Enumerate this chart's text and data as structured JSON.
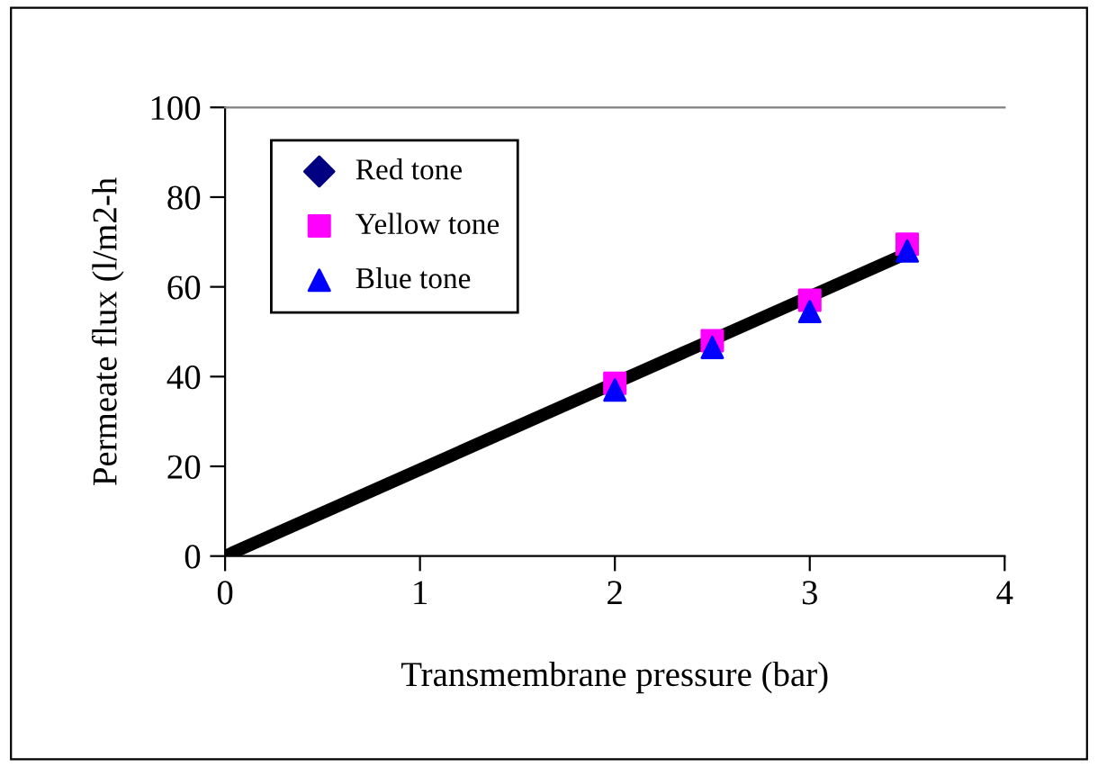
{
  "chart_data": {
    "type": "scatter",
    "xlabel": "Transmembrane pressure (bar)",
    "ylabel": "Permeate flux (l/m2-h",
    "x": [
      2,
      2.5,
      3,
      3.5
    ],
    "series": [
      {
        "name": "Red tone",
        "color": "#000080",
        "marker": "diamond",
        "values": [
          null,
          null,
          null,
          null
        ]
      },
      {
        "name": "Yellow tone",
        "color": "#ff00ff",
        "marker": "square",
        "values": [
          38.5,
          48,
          57,
          69.5
        ]
      },
      {
        "name": "Blue tone",
        "color": "#0000ff",
        "marker": "triangle",
        "values": [
          37,
          46.5,
          54.5,
          68
        ]
      },
      {
        "type": "line",
        "color": "#000000",
        "x": [
          0,
          3.5
        ],
        "values": [
          0,
          67.5
        ],
        "marker": "none",
        "line_style": "solid"
      }
    ],
    "xlim": [
      0,
      4
    ],
    "xticks": [
      0,
      1,
      2,
      3,
      4
    ],
    "ylim": [
      0,
      100
    ],
    "yticks": [
      0,
      20,
      40,
      60,
      80,
      100
    ],
    "grid": false,
    "legend": "top left"
  }
}
